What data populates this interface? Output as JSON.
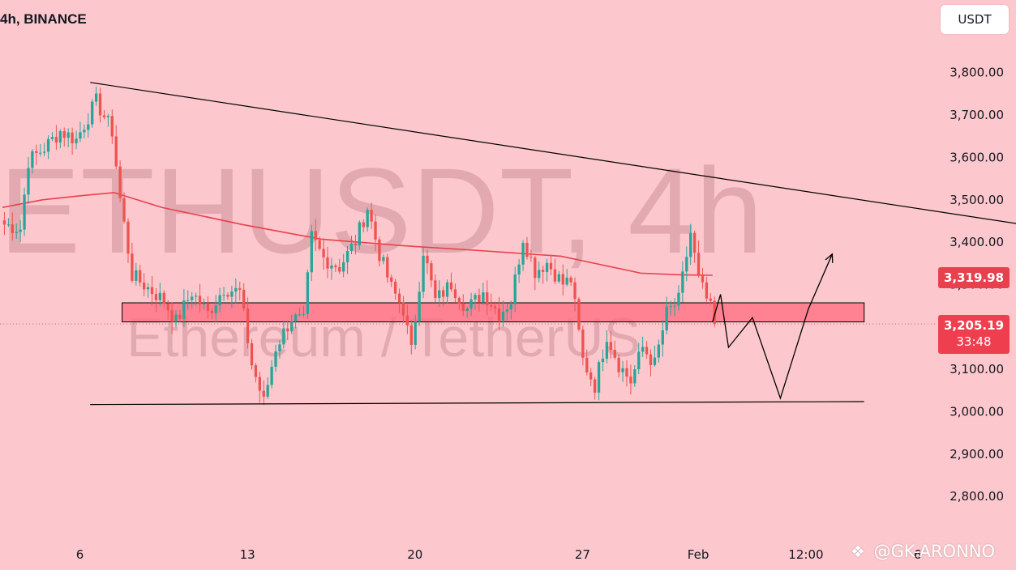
{
  "header": {
    "title": "4h, BINANCE"
  },
  "currency_button": {
    "label": "USDT"
  },
  "watermark": {
    "symbol": "ETHUSDT, 4h",
    "name": "Ethereum / TetherUS"
  },
  "credit": {
    "logo_icon": "binance-logo-icon",
    "text": "@GK-ARONNO"
  },
  "price_tags": {
    "ma_value": "3,319.98",
    "last_price": "3,205.19",
    "countdown": "33:48"
  },
  "colors": {
    "background": "#fcc8cd",
    "up": "#26a69a",
    "down": "#ef5350",
    "ma_line": "#e8404c",
    "zone_fill": "#ff6b7d",
    "trendline": "#000000"
  },
  "chart_data": {
    "type": "candlestick",
    "ylim": [
      2720,
      3960
    ],
    "y_ticks": [
      2800,
      2900,
      3000,
      3100,
      3200,
      3300,
      3400,
      3500,
      3600,
      3700,
      3800
    ],
    "y_tick_labels": [
      "2,800.00",
      "2,900.00",
      "3,000.00",
      "3,100.00",
      "3,200.00",
      "3,300.00",
      "3,400.00",
      "3,500.00",
      "3,600.00",
      "3,700.00",
      "3,800.00"
    ],
    "x_ticks": [
      {
        "label": "6",
        "bar": 19
      },
      {
        "label": "13",
        "bar": 61
      },
      {
        "label": "20",
        "bar": 103
      },
      {
        "label": "27",
        "bar": 145
      },
      {
        "label": "Feb",
        "bar": 174
      },
      {
        "label": "12:00",
        "bar": 201
      },
      {
        "label": "6",
        "bar": 229
      }
    ],
    "bars_total": 258,
    "candle_anchors": [
      [
        0,
        3440
      ],
      [
        4,
        3430
      ],
      [
        6,
        3590
      ],
      [
        10,
        3620
      ],
      [
        14,
        3660
      ],
      [
        18,
        3640
      ],
      [
        23,
        3730
      ],
      [
        27,
        3660
      ],
      [
        29,
        3500
      ],
      [
        32,
        3320
      ],
      [
        36,
        3290
      ],
      [
        40,
        3260
      ],
      [
        43,
        3210
      ],
      [
        47,
        3280
      ],
      [
        51,
        3230
      ],
      [
        55,
        3290
      ],
      [
        59,
        3280
      ],
      [
        62,
        3110
      ],
      [
        65,
        3020
      ],
      [
        68,
        3150
      ],
      [
        72,
        3220
      ],
      [
        75,
        3210
      ],
      [
        77,
        3410
      ],
      [
        80,
        3360
      ],
      [
        84,
        3340
      ],
      [
        88,
        3400
      ],
      [
        91,
        3480
      ],
      [
        94,
        3370
      ],
      [
        97,
        3290
      ],
      [
        100,
        3240
      ],
      [
        102,
        3140
      ],
      [
        105,
        3380
      ],
      [
        108,
        3260
      ],
      [
        112,
        3300
      ],
      [
        116,
        3240
      ],
      [
        120,
        3280
      ],
      [
        124,
        3230
      ],
      [
        127,
        3260
      ],
      [
        130,
        3410
      ],
      [
        133,
        3330
      ],
      [
        136,
        3350
      ],
      [
        140,
        3300
      ],
      [
        142,
        3310
      ],
      [
        145,
        3120
      ],
      [
        148,
        3060
      ],
      [
        151,
        3180
      ],
      [
        154,
        3110
      ],
      [
        157,
        3070
      ],
      [
        160,
        3150
      ],
      [
        163,
        3110
      ],
      [
        166,
        3230
      ],
      [
        169,
        3260
      ],
      [
        172,
        3420
      ],
      [
        174,
        3310
      ],
      [
        177,
        3240
      ],
      [
        178,
        3205.19
      ]
    ],
    "moving_average": [
      [
        0,
        3480
      ],
      [
        10,
        3498
      ],
      [
        20,
        3508
      ],
      [
        28,
        3515
      ],
      [
        40,
        3480
      ],
      [
        60,
        3440
      ],
      [
        80,
        3405
      ],
      [
        100,
        3390
      ],
      [
        120,
        3378
      ],
      [
        140,
        3365
      ],
      [
        150,
        3345
      ],
      [
        160,
        3325
      ],
      [
        170,
        3321
      ],
      [
        178,
        3319.98
      ]
    ],
    "support_zone": {
      "y_low": 3210,
      "y_high": 3255,
      "x_start": 30,
      "x_end": 216
    },
    "resistance_trendline": [
      [
        22,
        3775
      ],
      [
        273,
        3415
      ]
    ],
    "support_trendline": [
      [
        22,
        3015
      ],
      [
        216,
        3022
      ]
    ],
    "projection_path": [
      [
        178,
        3210
      ],
      [
        180,
        3275
      ],
      [
        182,
        3150
      ],
      [
        188,
        3220
      ],
      [
        195,
        3030
      ],
      [
        202,
        3240
      ],
      [
        208,
        3370
      ]
    ],
    "last_price": 3205.19,
    "ma_price": 3319.98
  }
}
